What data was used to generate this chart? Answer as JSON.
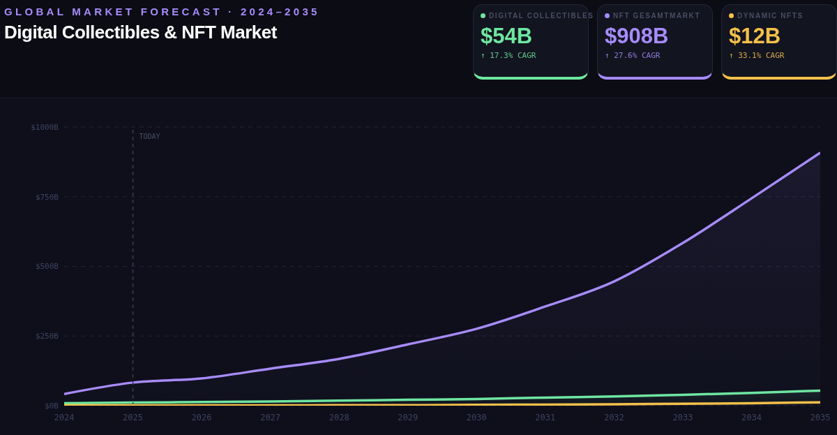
{
  "chart_data": {
    "type": "line",
    "subtitle": "GLOBAL MARKET FORECAST · 2024–2035",
    "title": "Digital Collectibles & NFT Market",
    "annotations": [
      "$54B",
      "↑ 17.3% CAGR",
      "$908B",
      "↑ 27.6% CAGR",
      "$12B",
      "↑ 33.1% CAGR"
    ],
    "x": [
      2024,
      2025,
      2026,
      2027,
      2028,
      2029,
      2030,
      2031,
      2032,
      2033,
      2034,
      2035
    ],
    "series": [
      {
        "name": "DIGITAL COLLECTIBLES",
        "type": "area",
        "color": "#6ee7a0",
        "values": [
          9,
          11,
          13,
          15,
          18,
          21,
          24,
          29,
          33,
          39,
          46,
          54
        ]
      },
      {
        "name": "NFT GESAMTMARKT",
        "type": "area",
        "color": "#a78bfa",
        "values": [
          42,
          83,
          98,
          133,
          168,
          220,
          276,
          356,
          446,
          584,
          744,
          908
        ]
      },
      {
        "name": "DYNAMIC NFTS",
        "color": "#f5c04a",
        "values": [
          1,
          1,
          1,
          1,
          2,
          2,
          3,
          4,
          5,
          7,
          9,
          12
        ]
      }
    ],
    "xlim": [
      2024,
      2035
    ],
    "xticks": [
      2024,
      2025,
      2026,
      2027,
      2028,
      2029,
      2030,
      2031,
      2032,
      2033,
      2034,
      2035
    ],
    "ylim": [
      0,
      1000
    ],
    "yticks": [
      {
        "value": 0,
        "label": "$0B"
      },
      {
        "value": 250,
        "label": "$250B"
      },
      {
        "value": 500,
        "label": "$500B"
      },
      {
        "value": 750,
        "label": "$750B"
      },
      {
        "value": 1000,
        "label": "$1000B"
      }
    ],
    "ref_lines": [
      {
        "axis": "x",
        "value": 2025,
        "label": "TODAY",
        "line_style": "dashed"
      }
    ],
    "grid": "y",
    "legend": "top right",
    "marker": "none"
  }
}
